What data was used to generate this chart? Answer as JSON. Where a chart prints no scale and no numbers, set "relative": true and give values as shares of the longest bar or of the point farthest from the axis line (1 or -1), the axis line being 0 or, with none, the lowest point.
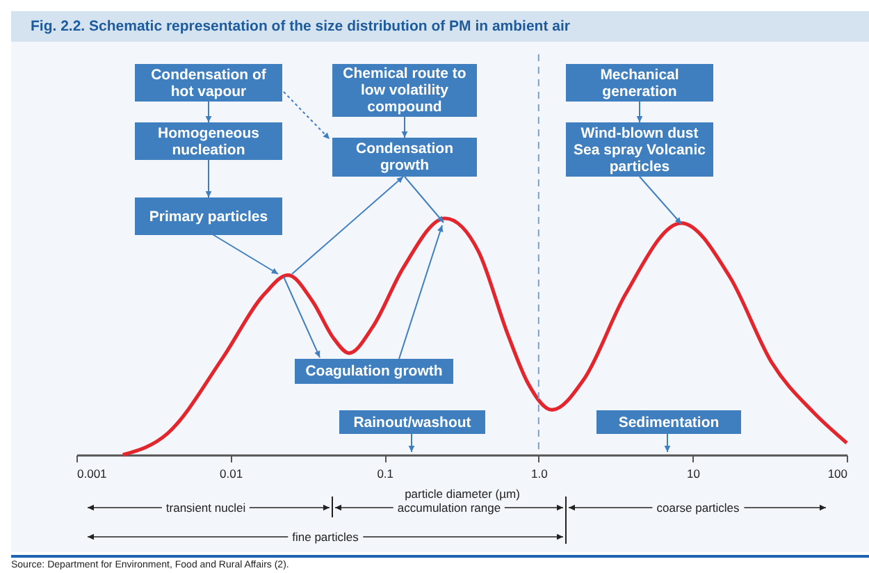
{
  "chart_data": {
    "type": "line",
    "title": "Fig. 2.2. Schematic representation of the size distribution of PM in ambient air",
    "xlabel": "particle diameter (µm)",
    "log": "x",
    "relative": true,
    "grid": false,
    "xlim": [
      0.001,
      100
    ],
    "xticks": [
      0.001,
      0.01,
      0.1,
      {
        "value": 1,
        "label": "1.0"
      },
      10,
      100
    ],
    "x": [
      0.002,
      0.0039,
      0.0089,
      0.0166,
      0.0236,
      0.034,
      0.047,
      0.0588,
      0.0836,
      0.132,
      0.247,
      0.407,
      0.63,
      0.857,
      1.22,
      1.97,
      3.67,
      8.43,
      17.5,
      32.6,
      60.7,
      100
    ],
    "series": [
      {
        "color": "#e3262d",
        "values": [
          0,
          0.09,
          0.41,
          0.68,
          0.76,
          0.65,
          0.49,
          0.43,
          0.54,
          0.79,
          1,
          0.86,
          0.51,
          0.3,
          0.19,
          0.32,
          0.68,
          0.98,
          0.75,
          0.39,
          0.18,
          0.05
        ]
      }
    ],
    "ref_lines": [
      {
        "axis": "x",
        "value": 1,
        "color": "#7f9fc2",
        "line_style": "dashed"
      }
    ],
    "annotations": [
      "Condensation of hot vapour",
      "Homogeneous nucleation",
      "Primary particles",
      "Chemical route to low volatility compound",
      "Condensation growth",
      "Mechanical generation",
      "Wind-blown dust Sea spray Volcanic particles",
      "Coagulation growth",
      "Rainout/washout",
      "Sedimentation",
      "transient nuclei",
      "accumulation range",
      "coarse particles",
      "fine particles",
      "Source: Department for Environment, Food and Rural Affairs (2)."
    ]
  }
}
